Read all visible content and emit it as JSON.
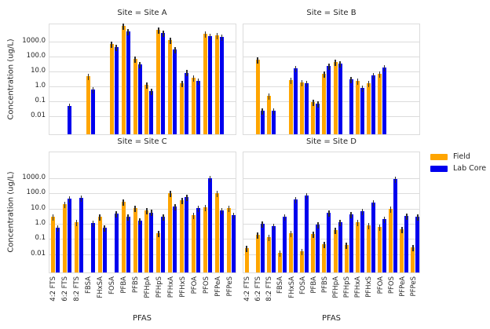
{
  "chart_data": {
    "type": "bar",
    "log_scale": true,
    "grid": "horizontal",
    "ylabel": "Concentration (ug/L)",
    "xlabel": "PFAS",
    "legend_position": "right of Site D, top",
    "ytick_labels": [
      "1000.0",
      "100.0",
      "10.0",
      "1.0",
      "0.1",
      "0.01"
    ],
    "ytick_values": [
      1000,
      100,
      10,
      1,
      0.1,
      0.01
    ],
    "ylim_top_row": [
      0.0005,
      15000
    ],
    "ylim_bottom_row": [
      0.0005,
      49000
    ],
    "categories": [
      "4:2 FTS",
      "6:2 FTS",
      "8:2 FTS",
      "FBSA",
      "FHxSA",
      "FOSA",
      "PFBA",
      "PFBS",
      "PFHpA",
      "PFHpS",
      "PFHxA",
      "PFHxS",
      "PFOA",
      "PFOS",
      "PFPeA",
      "PFPeS"
    ],
    "series_colors": {
      "field": "#FFA500",
      "lab": "#0000EE"
    },
    "error_bars": true,
    "legend": [
      {
        "label": "Field",
        "color": "#FFA500"
      },
      {
        "label": "Lab Core",
        "color": "#0000EE"
      }
    ],
    "facets": [
      {
        "title": "Site = Site A",
        "field": [
          null,
          null,
          null,
          4,
          null,
          600,
          9000,
          60,
          1.0,
          5000,
          1100,
          1.4,
          3,
          2600,
          2200,
          null
        ],
        "lab": [
          null,
          0.04,
          null,
          0.5,
          null,
          360,
          4000,
          25,
          0.4,
          3000,
          240,
          6.8,
          2,
          2000,
          1600,
          null
        ]
      },
      {
        "title": "Site = Site B",
        "field": [
          null,
          50,
          0.18,
          null,
          2.1,
          1.5,
          0.075,
          5.5,
          37,
          null,
          1.8,
          1.4,
          5.5,
          null,
          null,
          null
        ],
        "lab": [
          null,
          0.02,
          0.02,
          null,
          13,
          1.4,
          0.06,
          20,
          26,
          2.4,
          0.63,
          4.5,
          15,
          null,
          null,
          null
        ]
      },
      {
        "title": "Site = Site C",
        "field": [
          2.4,
          15,
          1.0,
          null,
          2.4,
          null,
          21,
          8,
          6,
          0.2,
          85,
          27,
          2.8,
          9,
          85,
          8.5
        ],
        "lab": [
          0.45,
          34,
          40,
          0.9,
          0.42,
          3.5,
          2.2,
          1.2,
          4.4,
          2.3,
          11,
          45,
          8.5,
          800,
          6,
          3
        ]
      },
      {
        "title": "Site = Site D",
        "field": [
          0.02,
          0.15,
          0.1,
          0.01,
          0.18,
          0.012,
          0.16,
          0.035,
          0.3,
          0.033,
          1.0,
          0.6,
          0.5,
          7.5,
          0.35,
          0.022
        ],
        "lab": [
          null,
          0.8,
          0.55,
          2.2,
          30,
          55,
          0.7,
          4,
          1.05,
          3.3,
          5.5,
          20,
          1.6,
          650,
          2.6,
          2.4
        ]
      }
    ]
  }
}
